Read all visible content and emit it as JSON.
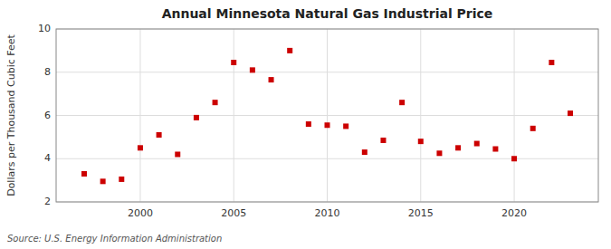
{
  "chart_data": {
    "type": "scatter",
    "title": "Annual Minnesota Natural Gas Industrial Price",
    "ylabel": "Dollars per Thousand Cubic Feet",
    "source": "Source: U.S. Energy Information Administration",
    "x": [
      1997,
      1998,
      1999,
      2000,
      2001,
      2002,
      2003,
      2004,
      2005,
      2006,
      2007,
      2008,
      2009,
      2010,
      2011,
      2012,
      2013,
      2014,
      2015,
      2016,
      2017,
      2018,
      2019,
      2020,
      2021,
      2022,
      2023
    ],
    "values": [
      3.3,
      2.95,
      3.05,
      4.5,
      5.1,
      4.2,
      5.9,
      6.6,
      8.45,
      8.1,
      7.65,
      9.0,
      5.6,
      5.55,
      5.5,
      4.3,
      4.85,
      6.6,
      4.8,
      4.25,
      4.5,
      4.7,
      4.45,
      4.0,
      5.4,
      8.45,
      6.1
    ],
    "color": "#cc0000",
    "marker": "square",
    "xlim": [
      1995.5,
      2024.5
    ],
    "ylim": [
      2,
      10
    ],
    "xticks": [
      2000,
      2005,
      2010,
      2015,
      2020
    ],
    "yticks": [
      2,
      4,
      6,
      8,
      10
    ],
    "grid": true
  }
}
